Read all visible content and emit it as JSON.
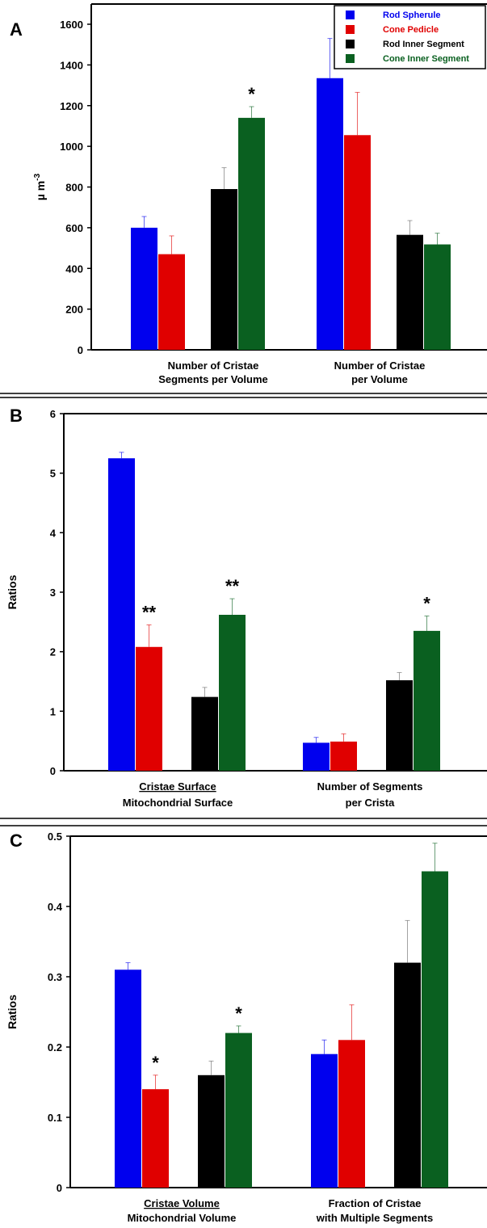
{
  "legend": [
    {
      "name": "Rod Spherule",
      "color": "#0000ee"
    },
    {
      "name": "Cone Pedicle",
      "color": "#e00000"
    },
    {
      "name": "Rod Inner Segment",
      "color": "#000000"
    },
    {
      "name": "Cone Inner Segment",
      "color": "#0a6020"
    }
  ],
  "chart_data": [
    {
      "panel": "A",
      "type": "bar",
      "ylabel_main": "µ m",
      "ylabel_sup": "-3",
      "ylim": [
        0,
        1600
      ],
      "yticks": [
        "0",
        "200",
        "400",
        "600",
        "800",
        "1000",
        "1200",
        "1400",
        "1600"
      ],
      "categories": [
        {
          "line1": "Number of Cristae",
          "line2": "Segments per Volume",
          "underline_line1": false
        },
        {
          "line1": "Number of Cristae",
          "line2": "per Volume",
          "underline_line1": false
        }
      ],
      "series": [
        {
          "name": "Rod Spherule",
          "color": "#0000ee",
          "values": [
            600,
            1335
          ],
          "errors": [
            55,
            195
          ]
        },
        {
          "name": "Cone Pedicle",
          "color": "#e00000",
          "values": [
            470,
            1055
          ],
          "errors": [
            90,
            210
          ]
        },
        {
          "name": "Rod Inner Segment",
          "color": "#000000",
          "values": [
            790,
            565
          ],
          "errors": [
            105,
            70
          ]
        },
        {
          "name": "Cone Inner Segment",
          "color": "#0a6020",
          "values": [
            1140,
            518
          ],
          "errors": [
            55,
            55
          ]
        }
      ],
      "annotations": [
        {
          "text": "*",
          "category": 0,
          "series": 3
        }
      ]
    },
    {
      "panel": "B",
      "type": "bar",
      "ylabel_main": "Ratios",
      "ylim": [
        0,
        6
      ],
      "yticks": [
        "0",
        "1",
        "2",
        "3",
        "4",
        "5",
        "6"
      ],
      "categories": [
        {
          "line1": "Cristae Surface",
          "line2": "Mitochondrial Surface",
          "underline_line1": true
        },
        {
          "line1": "Number of Segments",
          "line2": "per Crista",
          "underline_line1": false
        }
      ],
      "series": [
        {
          "name": "Rod Spherule",
          "color": "#0000ee",
          "values": [
            5.25,
            0.47
          ],
          "errors": [
            0.1,
            0.09
          ]
        },
        {
          "name": "Cone Pedicle",
          "color": "#e00000",
          "values": [
            2.08,
            0.49
          ],
          "errors": [
            0.37,
            0.13
          ]
        },
        {
          "name": "Rod Inner Segment",
          "color": "#000000",
          "values": [
            1.24,
            1.52
          ],
          "errors": [
            0.16,
            0.13
          ]
        },
        {
          "name": "Cone Inner Segment",
          "color": "#0a6020",
          "values": [
            2.62,
            2.35
          ],
          "errors": [
            0.27,
            0.25
          ]
        }
      ],
      "annotations": [
        {
          "text": "**",
          "category": 0,
          "series": 1
        },
        {
          "text": "**",
          "category": 0,
          "series": 3
        },
        {
          "text": "*",
          "category": 1,
          "series": 3
        }
      ]
    },
    {
      "panel": "C",
      "type": "bar",
      "ylabel_main": "Ratios",
      "ylim": [
        0,
        0.5
      ],
      "yticks": [
        "0",
        "0.1",
        "0.2",
        "0.3",
        "0.4",
        "0.5"
      ],
      "categories": [
        {
          "line1": "Cristae Volume",
          "line2": "Mitochondrial Volume",
          "underline_line1": true
        },
        {
          "line1": "Fraction of Cristae",
          "line2": "with Multiple Segments",
          "underline_line1": false
        }
      ],
      "series": [
        {
          "name": "Rod Spherule",
          "color": "#0000ee",
          "values": [
            0.31,
            0.19
          ],
          "errors": [
            0.01,
            0.02
          ]
        },
        {
          "name": "Cone Pedicle",
          "color": "#e00000",
          "values": [
            0.14,
            0.21
          ],
          "errors": [
            0.02,
            0.05
          ]
        },
        {
          "name": "Rod Inner Segment",
          "color": "#000000",
          "values": [
            0.16,
            0.32
          ],
          "errors": [
            0.02,
            0.06
          ]
        },
        {
          "name": "Cone Inner Segment",
          "color": "#0a6020",
          "values": [
            0.22,
            0.45
          ],
          "errors": [
            0.01,
            0.04
          ]
        }
      ],
      "annotations": [
        {
          "text": "*",
          "category": 0,
          "series": 1
        },
        {
          "text": "*",
          "category": 0,
          "series": 3
        }
      ]
    }
  ]
}
